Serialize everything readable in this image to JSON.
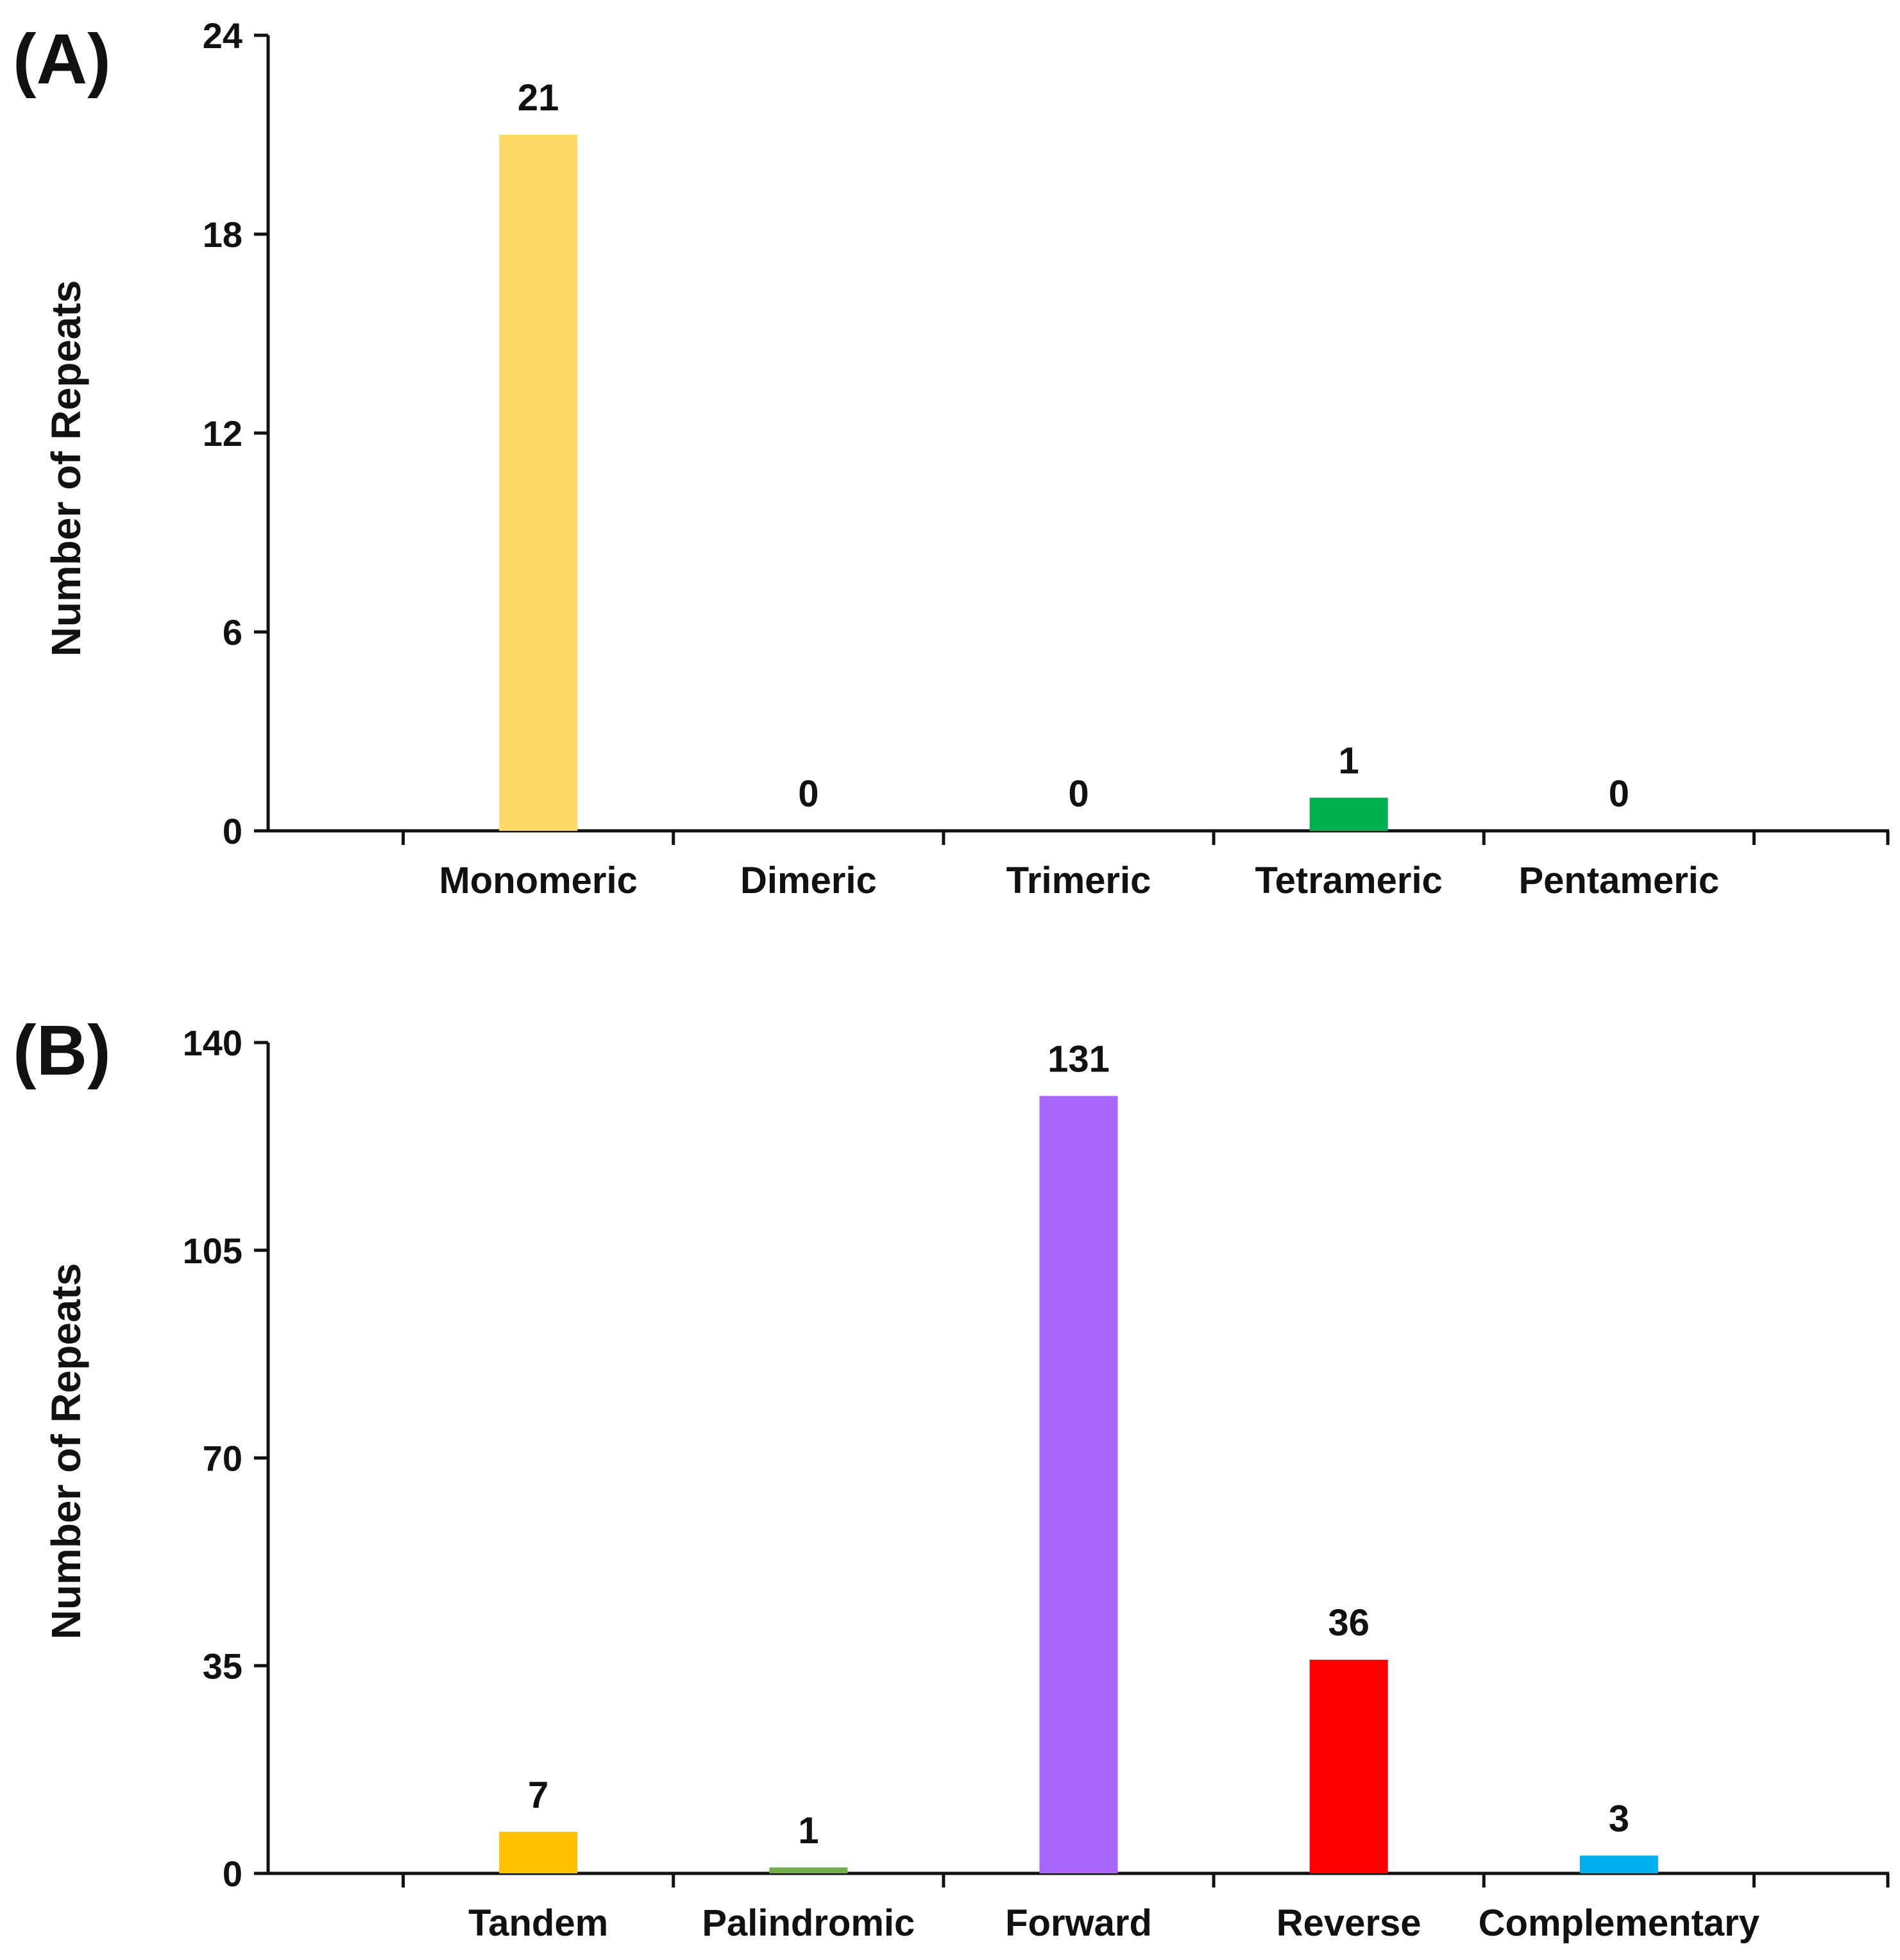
{
  "chart_data": [
    {
      "panel": "(A)",
      "type": "bar",
      "title": "",
      "xlabel": "",
      "ylabel": "Number of Repeats",
      "ylim": [
        0,
        24
      ],
      "yticks": [
        "0",
        "6",
        "12",
        "18",
        "24"
      ],
      "categories": [
        "Monomeric",
        "Dimeric",
        "Trimeric",
        "Tetrameric",
        "Pentameric"
      ],
      "values": [
        21,
        0,
        0,
        1,
        0
      ],
      "value_labels": [
        "21",
        "0",
        "0",
        "1",
        "0"
      ],
      "colors": [
        "#FFD966",
        "#70AD47",
        "#FFC000",
        "#00B050",
        "#00B0F0"
      ],
      "grid": false
    },
    {
      "panel": "(B)",
      "type": "bar",
      "title": "",
      "xlabel": "",
      "ylabel": "Number of Repeats",
      "ylim": [
        0,
        140
      ],
      "yticks": [
        "0",
        "35",
        "70",
        "105",
        "140"
      ],
      "categories": [
        "Tandem",
        "Palindromic",
        "Forward",
        "Reverse",
        "Complementary"
      ],
      "values": [
        7,
        1,
        131,
        36,
        3
      ],
      "value_labels": [
        "7",
        "1",
        "131",
        "36",
        "3"
      ],
      "colors": [
        "#FFC000",
        "#70AD47",
        "#A966FF",
        "#FF0000",
        "#00B0F0"
      ],
      "grid": false
    }
  ]
}
